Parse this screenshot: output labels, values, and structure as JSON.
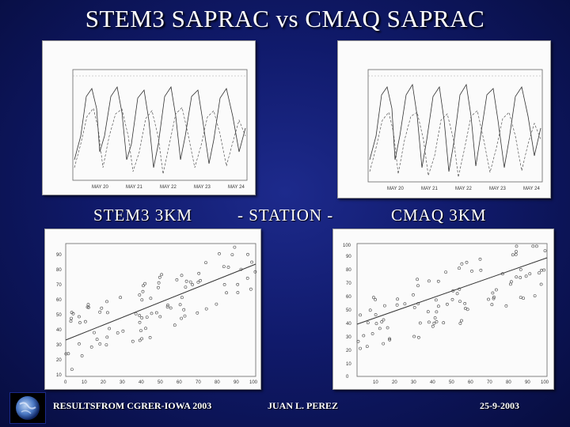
{
  "slide": {
    "title": "STEM3 SAPRAC vs CMAQ SAPRAC",
    "label_left": "STEM3 3KM",
    "label_mid": "-  STATION  -",
    "label_right": "CMAQ 3KM",
    "footer_left": "RESULTSFROM CGRER-IOWA 2003",
    "footer_mid": "JUAN L. PEREZ",
    "footer_right": "25-9-2003"
  },
  "timeseries": {
    "xticks": [
      "MAY 20",
      "MAY 21",
      "MAY 22",
      "MAY 23",
      "MAY 24"
    ]
  },
  "scatter_left": {
    "yticks": [
      "10",
      "20",
      "30",
      "40",
      "50",
      "60",
      "70",
      "80",
      "90"
    ],
    "xticks": [
      "0",
      "10",
      "20",
      "30",
      "40",
      "50",
      "60",
      "70",
      "80",
      "90",
      "100"
    ]
  },
  "scatter_right": {
    "yticks": [
      "0",
      "10",
      "20",
      "30",
      "40",
      "50",
      "60",
      "70",
      "80",
      "90",
      "100"
    ],
    "xticks": [
      "10",
      "20",
      "30",
      "40",
      "50",
      "60",
      "70",
      "80",
      "90",
      "100"
    ]
  },
  "colors": {
    "background": "#101a6b",
    "panel": "#fbfbfb",
    "title": "#ffffff"
  },
  "icons": {
    "logo": "globe-icon"
  }
}
